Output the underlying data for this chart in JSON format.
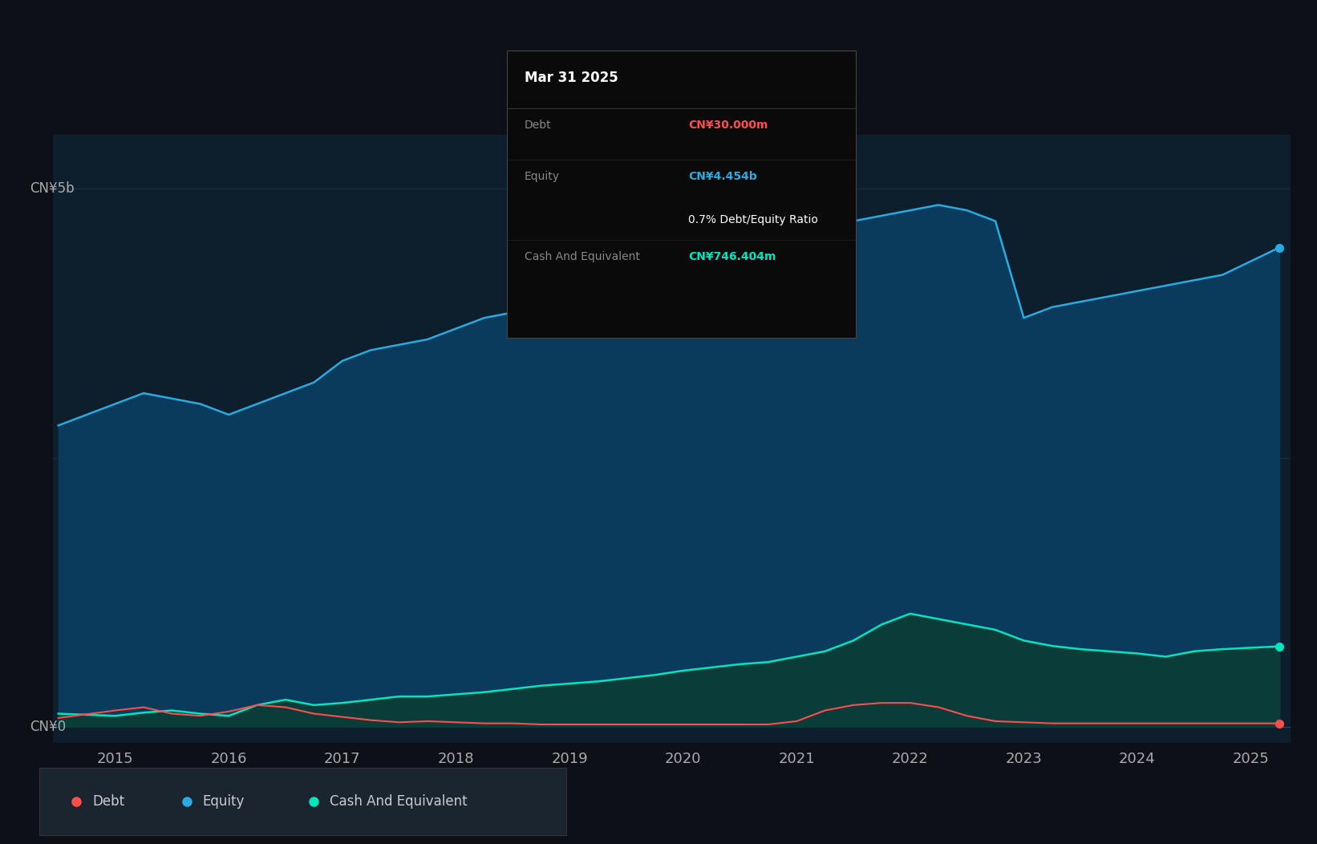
{
  "bg_color": "#0d1117",
  "plot_bg_color": "#0d1f2d",
  "equity_color": "#29abe2",
  "equity_fill_color": "#0a3a5c",
  "debt_color": "#ff4d4d",
  "cash_color": "#00e5c0",
  "cash_fill_color": "#0a3d3a",
  "ylabel_top": "CN¥5b",
  "ylabel_bottom": "CN¥0",
  "years": [
    2014.5,
    2015.0,
    2015.25,
    2015.5,
    2015.75,
    2016.0,
    2016.25,
    2016.5,
    2016.75,
    2017.0,
    2017.25,
    2017.5,
    2017.75,
    2018.0,
    2018.25,
    2018.5,
    2018.75,
    2019.0,
    2019.25,
    2019.5,
    2019.75,
    2020.0,
    2020.25,
    2020.5,
    2020.75,
    2021.0,
    2021.25,
    2021.5,
    2021.75,
    2022.0,
    2022.25,
    2022.5,
    2022.75,
    2023.0,
    2023.25,
    2023.5,
    2023.75,
    2024.0,
    2024.25,
    2024.5,
    2024.75,
    2025.25
  ],
  "equity": [
    2.8,
    3.0,
    3.1,
    3.05,
    3.0,
    2.9,
    3.0,
    3.1,
    3.2,
    3.4,
    3.5,
    3.55,
    3.6,
    3.7,
    3.8,
    3.85,
    3.9,
    4.0,
    4.05,
    4.1,
    4.15,
    4.2,
    4.3,
    4.4,
    4.5,
    4.6,
    4.65,
    4.7,
    4.75,
    4.8,
    4.85,
    4.8,
    4.7,
    3.8,
    3.9,
    3.95,
    4.0,
    4.05,
    4.1,
    4.15,
    4.2,
    4.454
  ],
  "debt": [
    0.08,
    0.15,
    0.18,
    0.12,
    0.1,
    0.14,
    0.2,
    0.18,
    0.12,
    0.09,
    0.06,
    0.04,
    0.05,
    0.04,
    0.03,
    0.03,
    0.02,
    0.02,
    0.02,
    0.02,
    0.02,
    0.02,
    0.02,
    0.02,
    0.02,
    0.05,
    0.15,
    0.2,
    0.22,
    0.22,
    0.18,
    0.1,
    0.05,
    0.04,
    0.03,
    0.03,
    0.03,
    0.03,
    0.03,
    0.03,
    0.03,
    0.03
  ],
  "cash": [
    0.12,
    0.1,
    0.13,
    0.15,
    0.12,
    0.1,
    0.2,
    0.25,
    0.2,
    0.22,
    0.25,
    0.28,
    0.28,
    0.3,
    0.32,
    0.35,
    0.38,
    0.4,
    0.42,
    0.45,
    0.48,
    0.52,
    0.55,
    0.58,
    0.6,
    0.65,
    0.7,
    0.8,
    0.95,
    1.05,
    1.0,
    0.95,
    0.9,
    0.8,
    0.75,
    0.72,
    0.7,
    0.68,
    0.65,
    0.7,
    0.72,
    0.746
  ],
  "x_ticks": [
    2015,
    2016,
    2017,
    2018,
    2019,
    2020,
    2021,
    2022,
    2023,
    2024,
    2025
  ],
  "x_tick_labels": [
    "2015",
    "2016",
    "2017",
    "2018",
    "2019",
    "2020",
    "2021",
    "2022",
    "2023",
    "2024",
    "2025"
  ],
  "ylim": [
    -0.15,
    5.5
  ],
  "tooltip": {
    "date": "Mar 31 2025",
    "debt_label": "Debt",
    "debt_value": "CN¥30.000m",
    "equity_label": "Equity",
    "equity_value": "CN¥4.454b",
    "ratio_text": "0.7% Debt/Equity Ratio",
    "cash_label": "Cash And Equivalent",
    "cash_value": "CN¥746.404m"
  },
  "legend": [
    {
      "label": "Debt",
      "color": "#ff4d4d"
    },
    {
      "label": "Equity",
      "color": "#29abe2"
    },
    {
      "label": "Cash And Equivalent",
      "color": "#00e5c0"
    }
  ]
}
